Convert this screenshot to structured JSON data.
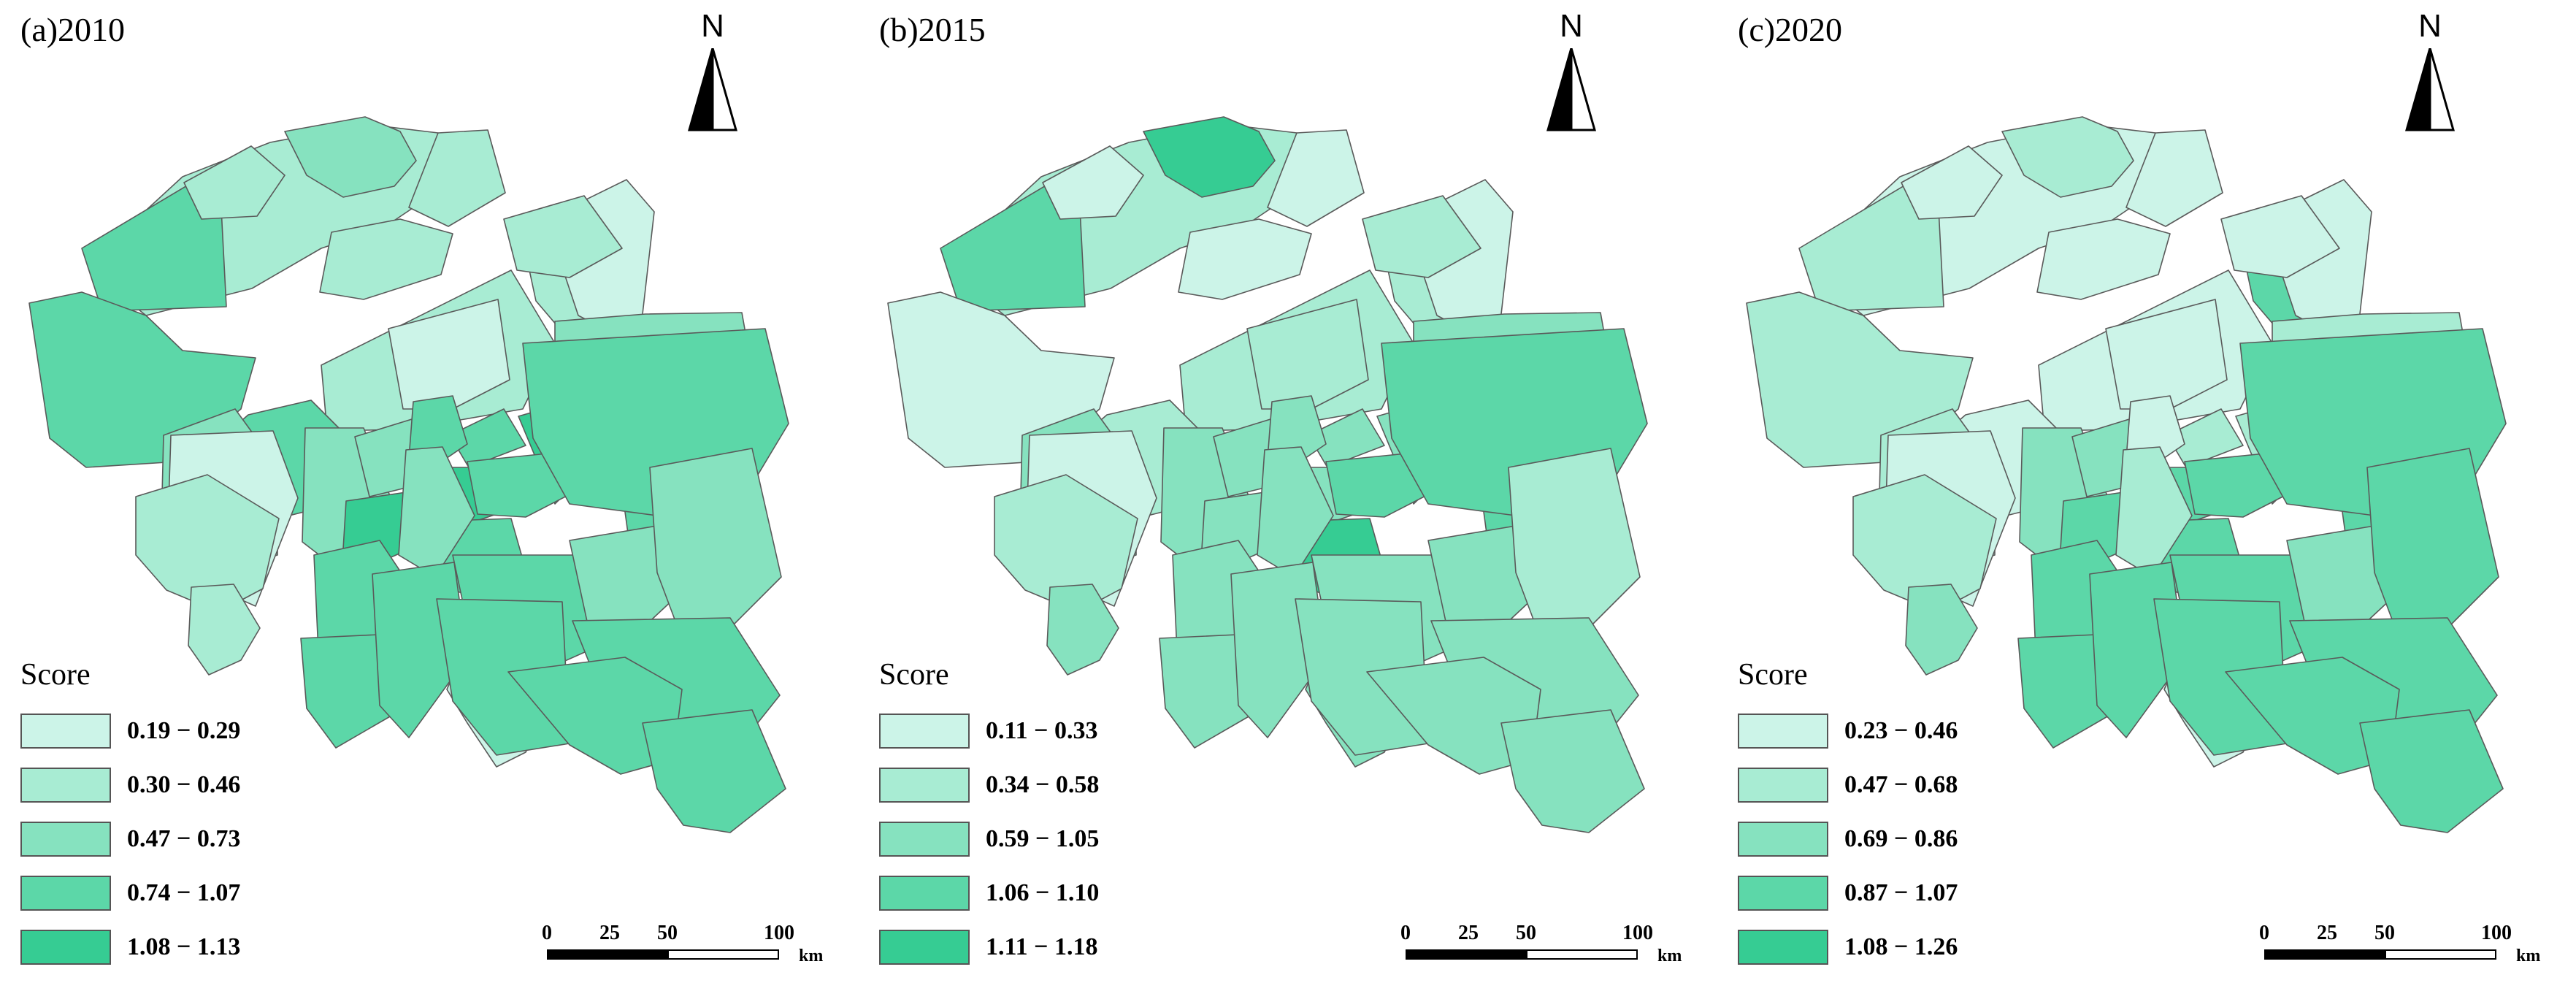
{
  "colors": {
    "c1": "#ccf4e8",
    "c2": "#a8ecd3",
    "c3": "#86e2bf",
    "c4": "#5cd7a8",
    "c5": "#36cc93",
    "stroke": "#5a5a5a"
  },
  "north_label": "N",
  "legend_title": "Score",
  "scale": {
    "ticks": [
      "0",
      "25",
      "50",
      "100"
    ],
    "unit": "km"
  },
  "panels": [
    {
      "title": "(a)2010",
      "legend": [
        "0.19 − 0.29",
        "0.30 − 0.46",
        "0.47 − 0.73",
        "0.74 − 1.07",
        "1.08 − 1.13"
      ],
      "classes": [
        2,
        3,
        4,
        4,
        2,
        2,
        2,
        2,
        2,
        1,
        1,
        2,
        3,
        4,
        3,
        3,
        3,
        4,
        5,
        4,
        1,
        5,
        5,
        4,
        4,
        4,
        4,
        4,
        5,
        3,
        1,
        2,
        2,
        4,
        4,
        4,
        4,
        4,
        3,
        3,
        4,
        4,
        4
      ]
    },
    {
      "title": "(b)2015",
      "legend": [
        "0.11 − 0.33",
        "0.34 − 0.58",
        "0.59 − 1.05",
        "1.06 − 1.10",
        "1.11 − 1.18"
      ],
      "classes": [
        2,
        5,
        4,
        1,
        1,
        1,
        1,
        2,
        2,
        1,
        2,
        2,
        3,
        2,
        3,
        3,
        3,
        3,
        3,
        3,
        1,
        3,
        3,
        4,
        5,
        5,
        4,
        4,
        3,
        3,
        3,
        2,
        3,
        3,
        3,
        3,
        3,
        3,
        3,
        2,
        3,
        3,
        3
      ]
    },
    {
      "title": "(c)2020",
      "legend": [
        "0.23 − 0.46",
        "0.47 − 0.68",
        "0.69 − 0.86",
        "0.87 − 1.07",
        "1.08 − 1.26"
      ],
      "classes": [
        1,
        2,
        2,
        2,
        1,
        1,
        1,
        4,
        1,
        1,
        1,
        1,
        2,
        1,
        2,
        3,
        3,
        2,
        2,
        1,
        1,
        4,
        4,
        4,
        4,
        4,
        4,
        4,
        4,
        2,
        1,
        2,
        3,
        4,
        4,
        4,
        4,
        4,
        3,
        4,
        4,
        4,
        4
      ]
    }
  ]
}
